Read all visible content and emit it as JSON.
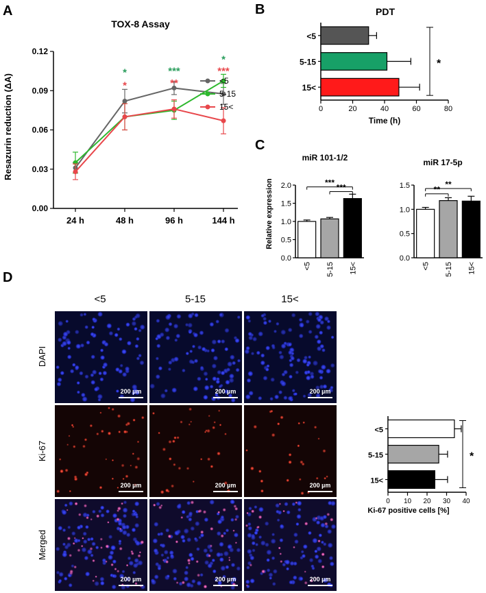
{
  "panels": {
    "A": "A",
    "B": "B",
    "C": "C",
    "D": "D"
  },
  "chart_data": [
    {
      "id": "A",
      "type": "line",
      "title": "TOX-8 Assay",
      "ylabel": "Resazurin reduction (ΔA)",
      "xlabel": "",
      "categories": [
        "24 h",
        "48 h",
        "96 h",
        "144 h"
      ],
      "ylim": [
        0,
        0.12
      ],
      "yticks": [
        "0.00",
        "0.03",
        "0.06",
        "0.09",
        "0.12"
      ],
      "grid": false,
      "legend_position": "top-right",
      "series": [
        {
          "name": "<5",
          "color": "#666666",
          "values": [
            0.031,
            0.082,
            0.092,
            0.0875
          ],
          "errors": [
            0.004,
            0.009,
            0.005,
            0.008
          ]
        },
        {
          "name": "5-15",
          "color": "#2db82d",
          "values": [
            0.035,
            0.07,
            0.075,
            0.0975
          ],
          "errors": [
            0.008,
            0.01,
            0.007,
            0.005
          ]
        },
        {
          "name": "15<",
          "color": "#e8474b",
          "values": [
            0.028,
            0.07,
            0.076,
            0.067
          ],
          "errors": [
            0.006,
            0.01,
            0.007,
            0.01
          ]
        }
      ],
      "annotations": [
        {
          "category": "48 h",
          "text": "*",
          "color": "#2a9d5c",
          "y": 0.105
        },
        {
          "category": "48 h",
          "text": "*",
          "color": "#e8474b",
          "y": 0.095
        },
        {
          "category": "96 h",
          "text": "***",
          "color": "#2a9d5c",
          "y": 0.106
        },
        {
          "category": "96 h",
          "text": "**",
          "color": "#e8474b",
          "y": 0.097
        },
        {
          "category": "144 h",
          "text": "*",
          "color": "#2a9d5c",
          "y": 0.115
        },
        {
          "category": "144 h",
          "text": "***",
          "color": "#e8474b",
          "y": 0.106
        }
      ]
    },
    {
      "id": "B",
      "type": "bar",
      "orientation": "horizontal",
      "title": "PDT",
      "xlabel": "Time (h)",
      "categories": [
        "<5",
        "5-15",
        "15<"
      ],
      "values": [
        30,
        41.5,
        49
      ],
      "errors": [
        5,
        15,
        13
      ],
      "colors": [
        "#555555",
        "#17a067",
        "#ff1a1a"
      ],
      "xlim": [
        0,
        80
      ],
      "xticks": [
        "0",
        "20",
        "40",
        "60",
        "80"
      ],
      "significance": [
        {
          "from": "<5",
          "to": "15<",
          "text": "*"
        }
      ]
    },
    {
      "id": "C1",
      "type": "bar",
      "title": "miR 101-1/2",
      "ylabel": "Relative expression",
      "categories": [
        "<5",
        "5-15",
        "15<"
      ],
      "values": [
        1.0,
        1.07,
        1.63
      ],
      "errors": [
        0.04,
        0.04,
        0.12
      ],
      "colors": [
        "#ffffff",
        "#a6a6a6",
        "#000000"
      ],
      "ylim": [
        0,
        2.0
      ],
      "yticks": [
        "0.0",
        "0.5",
        "1.0",
        "1.5",
        "2.0"
      ],
      "significance": [
        {
          "from": "<5",
          "to": "15<",
          "text": "***",
          "y": 1.95
        },
        {
          "from": "5-15",
          "to": "15<",
          "text": "***",
          "y": 1.82
        }
      ]
    },
    {
      "id": "C2",
      "type": "bar",
      "title": "miR 17-5p",
      "ylabel": "",
      "categories": [
        "<5",
        "5-15",
        "15<"
      ],
      "values": [
        1.0,
        1.18,
        1.17
      ],
      "errors": [
        0.04,
        0.06,
        0.1
      ],
      "colors": [
        "#ffffff",
        "#a6a6a6",
        "#000000"
      ],
      "ylim": [
        0,
        1.5
      ],
      "yticks": [
        "0.0",
        "0.5",
        "1.0",
        "1.5"
      ],
      "significance": [
        {
          "from": "<5",
          "to": "5-15",
          "text": "**",
          "y": 1.32
        },
        {
          "from": "<5",
          "to": "15<",
          "text": "**",
          "y": 1.43
        }
      ]
    },
    {
      "id": "D",
      "type": "bar",
      "orientation": "horizontal",
      "xlabel": "Ki-67 positive cells [%]",
      "categories": [
        "<5",
        "5-15",
        "15<"
      ],
      "values": [
        34,
        26,
        24
      ],
      "errors": [
        3.5,
        4.5,
        6.5
      ],
      "colors": [
        "#ffffff",
        "#a6a6a6",
        "#000000"
      ],
      "xlim": [
        0,
        40
      ],
      "xticks": [
        "0",
        "10",
        "20",
        "30",
        "40"
      ],
      "significance": [
        {
          "from": "<5",
          "to": "15<",
          "text": "*"
        }
      ]
    }
  ],
  "micrographs": {
    "columns": [
      "<5",
      "5-15",
      "15<"
    ],
    "rows": [
      "DAPI",
      "Ki-67",
      "Merged"
    ],
    "scale_bar": "200 µm"
  }
}
